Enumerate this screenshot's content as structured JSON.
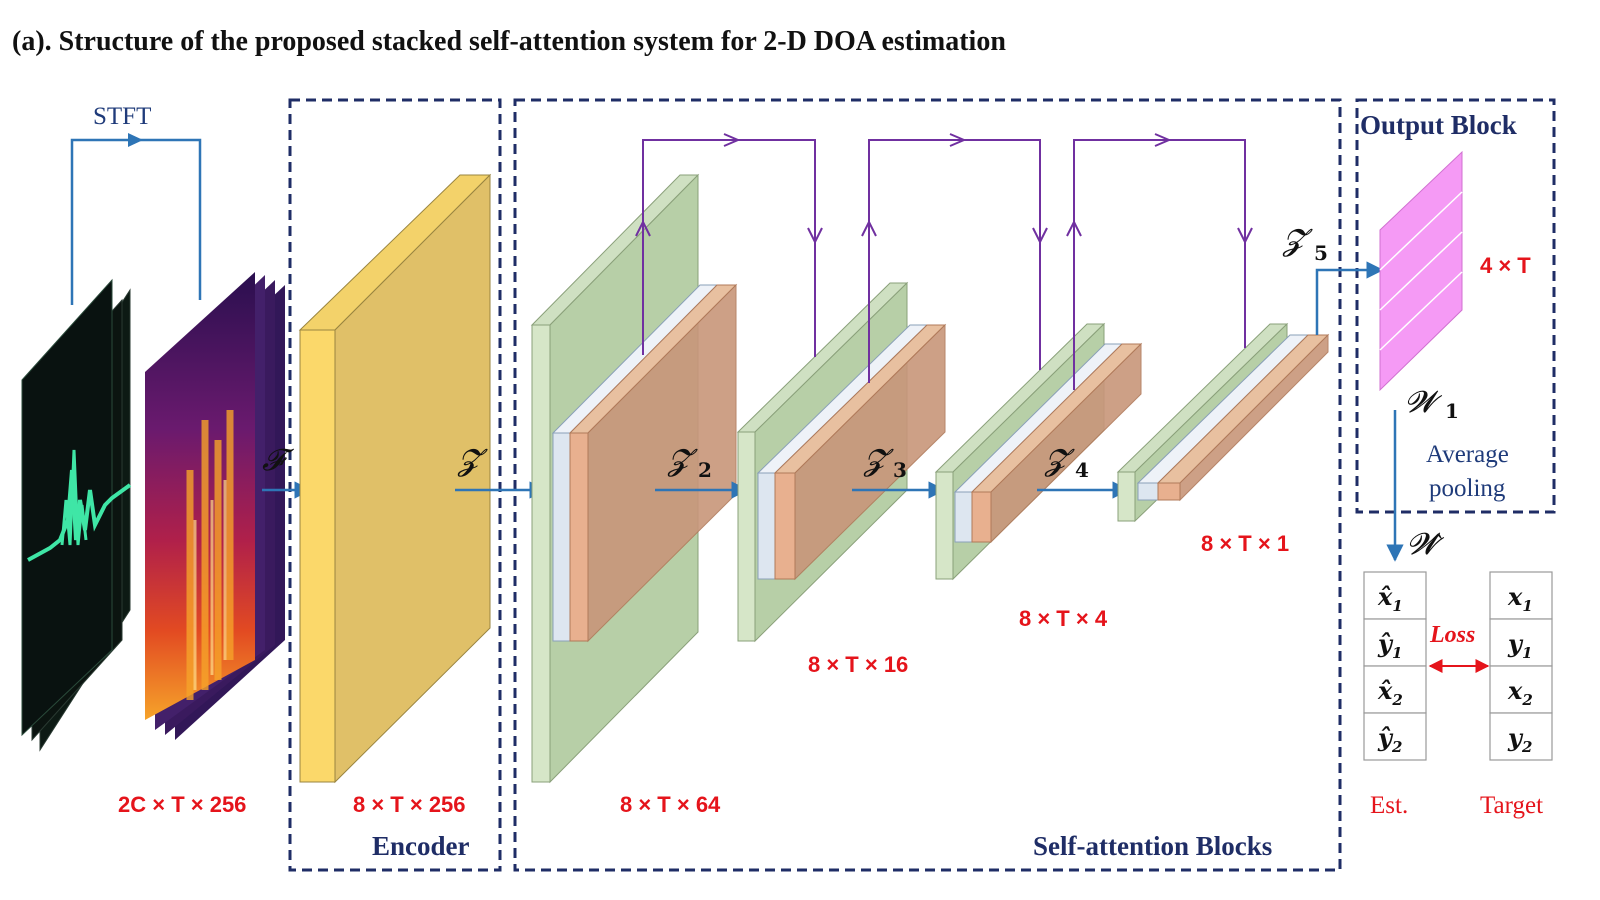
{
  "title": "(a). Structure of the proposed stacked self-attention system for 2-D DOA estimation",
  "blocks": {
    "encoder": "Encoder",
    "self_attention": "Self-attention Blocks",
    "output": "Output Block"
  },
  "labels": {
    "stft": "STFT",
    "input_dim": "2C × T × 256",
    "encoder_dim": "8 × T × 256",
    "block1_dim": "8 × T × 64",
    "block2_dim": "8 × T × 16",
    "block3_dim": "8 × T × 4",
    "block4_dim": "8 × T × 1",
    "output_dim": "4 × T",
    "average_pooling_line1": "Average",
    "average_pooling_line2": "pooling",
    "loss": "Loss",
    "est": "Est.",
    "target": "Target"
  },
  "symbols": {
    "F": "𝓕",
    "Z": "𝓩",
    "Z2": "𝓩",
    "Z2_sub": "2",
    "Z3": "𝓩",
    "Z3_sub": "3",
    "Z4": "𝓩",
    "Z4_sub": "4",
    "Z5": "𝓩",
    "Z5_sub": "5",
    "W1": "𝓦",
    "W1_sub": "1",
    "W_hat": "𝓦̂"
  },
  "est_column": [
    {
      "var": "x̂",
      "sub": "1"
    },
    {
      "var": "ŷ",
      "sub": "1"
    },
    {
      "var": "x̂",
      "sub": "2"
    },
    {
      "var": "ŷ",
      "sub": "2"
    }
  ],
  "target_column": [
    {
      "var": "x",
      "sub": "1"
    },
    {
      "var": "y",
      "sub": "1"
    },
    {
      "var": "x",
      "sub": "2"
    },
    {
      "var": "y",
      "sub": "2"
    }
  ],
  "colors": {
    "dashed_border": "#1f2d66",
    "arrow_blue": "#2e75b6",
    "skip_purple": "#7030a0",
    "encoder_yellow": "#e0c068",
    "green_block": "#b7cfa7",
    "orange_block": "#c8967a",
    "light_blue_block": "#dde6f0",
    "output_pink": "#f59af5",
    "red_text": "#e5141b"
  }
}
